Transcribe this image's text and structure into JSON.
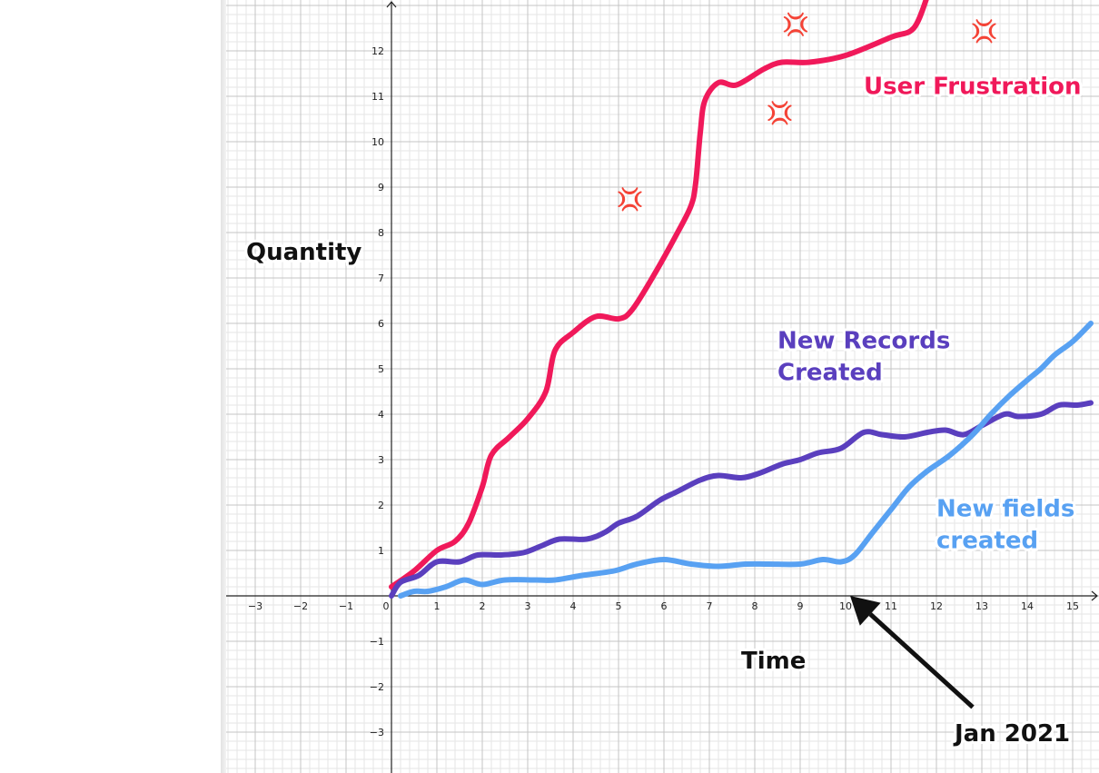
{
  "chart_data": {
    "type": "line",
    "title": "",
    "xlabel": "Time",
    "ylabel": "Quantity",
    "xlim": [
      -3.4,
      15.6
    ],
    "ylim": [
      -3.8,
      13.1
    ],
    "grid": true,
    "x_ticks": [
      "−3",
      "−2",
      "−1",
      "0",
      "1",
      "2",
      "3",
      "4",
      "5",
      "6",
      "7",
      "8",
      "9",
      "10",
      "11",
      "12",
      "13",
      "14",
      "15"
    ],
    "y_ticks": [
      "−3",
      "−2",
      "−1",
      "1",
      "2",
      "3",
      "4",
      "5",
      "6",
      "7",
      "8",
      "9",
      "10",
      "11",
      "12"
    ],
    "series": [
      {
        "name": "User Frustration",
        "color": "#f0195a",
        "points": [
          [
            0,
            0.2
          ],
          [
            0.5,
            0.55
          ],
          [
            1,
            1.0
          ],
          [
            1.4,
            1.2
          ],
          [
            1.7,
            1.6
          ],
          [
            2.0,
            2.4
          ],
          [
            2.2,
            3.1
          ],
          [
            2.6,
            3.5
          ],
          [
            3.0,
            3.9
          ],
          [
            3.4,
            4.5
          ],
          [
            3.6,
            5.4
          ],
          [
            4.0,
            5.8
          ],
          [
            4.5,
            6.15
          ],
          [
            5.0,
            6.1
          ],
          [
            5.3,
            6.3
          ],
          [
            5.8,
            7.1
          ],
          [
            6.3,
            8.0
          ],
          [
            6.6,
            8.6
          ],
          [
            6.7,
            9.1
          ],
          [
            6.8,
            10.2
          ],
          [
            6.9,
            10.9
          ],
          [
            7.2,
            11.3
          ],
          [
            7.6,
            11.25
          ],
          [
            8.2,
            11.6
          ],
          [
            8.6,
            11.75
          ],
          [
            9.2,
            11.75
          ],
          [
            10.0,
            11.9
          ],
          [
            11.0,
            12.3
          ],
          [
            11.5,
            12.5
          ],
          [
            11.8,
            13.2
          ]
        ]
      },
      {
        "name": "New Records Created",
        "color": "#5a3fbe",
        "points": [
          [
            0,
            0
          ],
          [
            0.2,
            0.3
          ],
          [
            0.6,
            0.45
          ],
          [
            1.0,
            0.75
          ],
          [
            1.5,
            0.75
          ],
          [
            1.9,
            0.9
          ],
          [
            2.4,
            0.9
          ],
          [
            2.9,
            0.95
          ],
          [
            3.3,
            1.1
          ],
          [
            3.7,
            1.25
          ],
          [
            4.3,
            1.25
          ],
          [
            4.7,
            1.4
          ],
          [
            5.0,
            1.6
          ],
          [
            5.4,
            1.75
          ],
          [
            5.9,
            2.1
          ],
          [
            6.3,
            2.3
          ],
          [
            6.8,
            2.55
          ],
          [
            7.2,
            2.65
          ],
          [
            7.7,
            2.6
          ],
          [
            8.1,
            2.7
          ],
          [
            8.6,
            2.9
          ],
          [
            9.0,
            3.0
          ],
          [
            9.4,
            3.15
          ],
          [
            9.9,
            3.25
          ],
          [
            10.4,
            3.6
          ],
          [
            10.8,
            3.55
          ],
          [
            11.3,
            3.5
          ],
          [
            11.8,
            3.6
          ],
          [
            12.2,
            3.65
          ],
          [
            12.6,
            3.55
          ],
          [
            13.0,
            3.75
          ],
          [
            13.5,
            4.0
          ],
          [
            13.8,
            3.95
          ],
          [
            14.3,
            4.0
          ],
          [
            14.7,
            4.2
          ],
          [
            15.1,
            4.2
          ],
          [
            15.4,
            4.25
          ]
        ]
      },
      {
        "name": "New fields created",
        "color": "#58a1f2",
        "points": [
          [
            0.2,
            0.0
          ],
          [
            0.5,
            0.1
          ],
          [
            0.8,
            0.1
          ],
          [
            1.2,
            0.2
          ],
          [
            1.6,
            0.35
          ],
          [
            2.0,
            0.25
          ],
          [
            2.5,
            0.35
          ],
          [
            3.2,
            0.35
          ],
          [
            3.6,
            0.35
          ],
          [
            4.2,
            0.45
          ],
          [
            4.9,
            0.55
          ],
          [
            5.4,
            0.7
          ],
          [
            6.0,
            0.8
          ],
          [
            6.6,
            0.7
          ],
          [
            7.2,
            0.65
          ],
          [
            7.8,
            0.7
          ],
          [
            8.3,
            0.7
          ],
          [
            9.0,
            0.7
          ],
          [
            9.5,
            0.8
          ],
          [
            9.9,
            0.75
          ],
          [
            10.2,
            0.9
          ],
          [
            10.6,
            1.4
          ],
          [
            11.0,
            1.9
          ],
          [
            11.4,
            2.4
          ],
          [
            11.8,
            2.75
          ],
          [
            12.3,
            3.1
          ],
          [
            12.8,
            3.55
          ],
          [
            13.2,
            4.0
          ],
          [
            13.6,
            4.4
          ],
          [
            14.0,
            4.75
          ],
          [
            14.3,
            5.0
          ],
          [
            14.6,
            5.3
          ],
          [
            15.0,
            5.6
          ],
          [
            15.4,
            6.0
          ]
        ]
      }
    ],
    "annotations": [
      {
        "id": "quantity",
        "text": "Quantity",
        "x": -3.2,
        "y": 7.4,
        "color": "#111111"
      },
      {
        "id": "time",
        "text": "Time",
        "x": 7.7,
        "y": -1.6,
        "color": "#111111"
      },
      {
        "id": "frustration",
        "text": "User Frustration",
        "x": 10.4,
        "y": 11.05,
        "color": "#f0195a"
      },
      {
        "id": "records-1",
        "text": "New Records",
        "x": 8.5,
        "y": 5.45,
        "color": "#5a3fbe"
      },
      {
        "id": "records-2",
        "text": "Created",
        "x": 8.5,
        "y": 4.75,
        "color": "#5a3fbe"
      },
      {
        "id": "fields-1",
        "text": "New fields",
        "x": 12.0,
        "y": 1.75,
        "color": "#58a1f2"
      },
      {
        "id": "fields-2",
        "text": "created",
        "x": 12.0,
        "y": 1.05,
        "color": "#58a1f2"
      },
      {
        "id": "jan",
        "text": "Jan 2021",
        "x": 12.4,
        "y": -3.2,
        "color": "#111111"
      }
    ],
    "arrow": {
      "from": [
        12.8,
        -2.45
      ],
      "to": [
        10.1,
        0.0
      ],
      "color": "#111111"
    },
    "emoji": {
      "symbol": "💢",
      "color": "#e0202e",
      "points": [
        [
          8.9,
          12.6
        ],
        [
          13.05,
          12.45
        ],
        [
          8.55,
          10.65
        ],
        [
          5.25,
          8.75
        ]
      ]
    }
  }
}
